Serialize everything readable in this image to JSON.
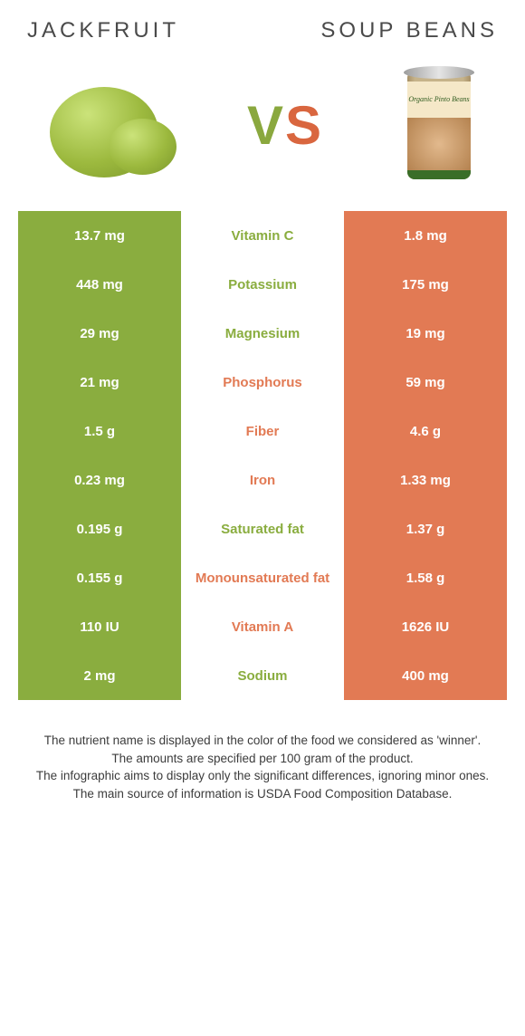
{
  "colors": {
    "green": "#8aad3f",
    "orange": "#e27a54",
    "text": "#333333",
    "bg": "#ffffff"
  },
  "header": {
    "left": "Jackfruit",
    "right": "Soup beans"
  },
  "vs": {
    "v": "V",
    "s": "S"
  },
  "can_label": "Organic\nPinto Beans",
  "rows": [
    {
      "left": "13.7 mg",
      "label": "Vitamin C",
      "right": "1.8 mg",
      "winner": "left"
    },
    {
      "left": "448 mg",
      "label": "Potassium",
      "right": "175 mg",
      "winner": "left"
    },
    {
      "left": "29 mg",
      "label": "Magnesium",
      "right": "19 mg",
      "winner": "left"
    },
    {
      "left": "21 mg",
      "label": "Phosphorus",
      "right": "59 mg",
      "winner": "right"
    },
    {
      "left": "1.5 g",
      "label": "Fiber",
      "right": "4.6 g",
      "winner": "right"
    },
    {
      "left": "0.23 mg",
      "label": "Iron",
      "right": "1.33 mg",
      "winner": "right"
    },
    {
      "left": "0.195 g",
      "label": "Saturated fat",
      "right": "1.37 g",
      "winner": "left"
    },
    {
      "left": "0.155 g",
      "label": "Monounsaturated fat",
      "right": "1.58 g",
      "winner": "right"
    },
    {
      "left": "110 IU",
      "label": "Vitamin A",
      "right": "1626 IU",
      "winner": "right"
    },
    {
      "left": "2 mg",
      "label": "Sodium",
      "right": "400 mg",
      "winner": "left"
    }
  ],
  "footnotes": [
    "The nutrient name is displayed in the color of the food we considered as 'winner'.",
    "The amounts are specified per 100 gram of the product.",
    "The infographic aims to display only the significant differences, ignoring minor ones.",
    "The main source of information is USDA Food Composition Database."
  ]
}
